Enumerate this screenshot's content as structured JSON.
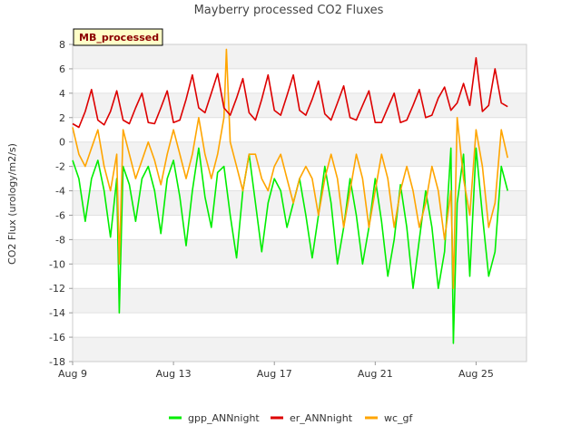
{
  "chart_data": {
    "type": "line",
    "title": "Mayberry processed CO2 Fluxes",
    "badge": "MB_processed",
    "xlabel": "",
    "ylabel": "CO2 Flux (urology/m2/s)",
    "ylim": [
      -18,
      8
    ],
    "yticks": [
      8,
      6,
      4,
      2,
      0,
      -2,
      -4,
      -6,
      -8,
      -10,
      -12,
      -14,
      -16,
      -18
    ],
    "xlim": [
      0,
      18
    ],
    "xticks": [
      {
        "value": 0,
        "label": "Aug 9"
      },
      {
        "value": 4,
        "label": "Aug 13"
      },
      {
        "value": 8,
        "label": "Aug 17"
      },
      {
        "value": 12,
        "label": "Aug 21"
      },
      {
        "value": 16,
        "label": "Aug 25"
      }
    ],
    "grid": true,
    "legend_position": "bottom",
    "series": [
      {
        "name": "gpp_ANNnight",
        "color": "#00ee00",
        "x": [
          0.0,
          0.25,
          0.5,
          0.75,
          1.0,
          1.25,
          1.5,
          1.75,
          1.85,
          2.0,
          2.25,
          2.5,
          2.75,
          3.0,
          3.25,
          3.5,
          3.75,
          4.0,
          4.25,
          4.5,
          4.75,
          5.0,
          5.25,
          5.5,
          5.75,
          6.0,
          6.25,
          6.5,
          6.75,
          7.0,
          7.25,
          7.5,
          7.75,
          8.0,
          8.25,
          8.5,
          8.75,
          9.0,
          9.25,
          9.5,
          9.75,
          10.0,
          10.25,
          10.5,
          10.75,
          11.0,
          11.25,
          11.5,
          11.75,
          12.0,
          12.25,
          12.5,
          12.75,
          13.0,
          13.25,
          13.5,
          13.75,
          14.0,
          14.25,
          14.5,
          14.75,
          15.0,
          15.1,
          15.25,
          15.5,
          15.75,
          16.0,
          16.25,
          16.5,
          16.75,
          17.0,
          17.25
        ],
        "y": [
          -1.5,
          -3,
          -6.5,
          -3,
          -1.5,
          -4,
          -7.8,
          -3,
          -14,
          -2,
          -3.5,
          -6.5,
          -3,
          -2,
          -4,
          -7.5,
          -3,
          -1.5,
          -4.5,
          -8.5,
          -4,
          -0.5,
          -4.5,
          -7,
          -2.5,
          -2,
          -6,
          -9.5,
          -4,
          -1,
          -5,
          -9,
          -5,
          -3,
          -4,
          -7,
          -5,
          -3,
          -6,
          -9.5,
          -6,
          -2,
          -5,
          -10,
          -7,
          -3,
          -6,
          -10,
          -7,
          -3,
          -6.5,
          -11,
          -8,
          -3.5,
          -7,
          -12,
          -8,
          -4,
          -7,
          -12,
          -9,
          -0.5,
          -16.5,
          -5,
          -1,
          -11,
          -0.5,
          -6,
          -11,
          -9,
          -2,
          -4
        ]
      },
      {
        "name": "er_ANNnight",
        "color": "#dd0000",
        "x": [
          0.0,
          0.25,
          0.5,
          0.75,
          1.0,
          1.25,
          1.5,
          1.75,
          2.0,
          2.25,
          2.5,
          2.75,
          3.0,
          3.25,
          3.5,
          3.75,
          4.0,
          4.25,
          4.5,
          4.75,
          5.0,
          5.25,
          5.5,
          5.75,
          6.0,
          6.25,
          6.5,
          6.75,
          7.0,
          7.25,
          7.5,
          7.75,
          8.0,
          8.25,
          8.5,
          8.75,
          9.0,
          9.25,
          9.5,
          9.75,
          10.0,
          10.25,
          10.5,
          10.75,
          11.0,
          11.25,
          11.5,
          11.75,
          12.0,
          12.25,
          12.5,
          12.75,
          13.0,
          13.25,
          13.5,
          13.75,
          14.0,
          14.25,
          14.5,
          14.75,
          15.0,
          15.25,
          15.5,
          15.75,
          16.0,
          16.25,
          16.5,
          16.75,
          17.0,
          17.25
        ],
        "y": [
          1.5,
          1.2,
          2.5,
          4.3,
          1.8,
          1.4,
          2.5,
          4.2,
          1.8,
          1.5,
          2.8,
          4.0,
          1.6,
          1.5,
          2.8,
          4.2,
          1.6,
          1.8,
          3.5,
          5.5,
          2.8,
          2.4,
          4.0,
          5.6,
          2.8,
          2.2,
          3.6,
          5.2,
          2.4,
          1.8,
          3.5,
          5.5,
          2.6,
          2.2,
          3.8,
          5.5,
          2.6,
          2.2,
          3.5,
          5.0,
          2.3,
          1.8,
          3.2,
          4.6,
          2.0,
          1.8,
          3.0,
          4.2,
          1.6,
          1.6,
          2.8,
          4.0,
          1.6,
          1.8,
          3.0,
          4.3,
          2.0,
          2.2,
          3.6,
          4.5,
          2.6,
          3.2,
          4.8,
          3.0,
          6.9,
          2.5,
          3.0,
          6.0,
          3.2,
          2.9
        ]
      },
      {
        "name": "wc_gf",
        "color": "#ffa500",
        "x": [
          0.0,
          0.25,
          0.5,
          0.75,
          1.0,
          1.25,
          1.5,
          1.75,
          1.85,
          2.0,
          2.25,
          2.5,
          2.75,
          3.0,
          3.25,
          3.5,
          3.75,
          4.0,
          4.25,
          4.5,
          4.75,
          5.0,
          5.25,
          5.5,
          5.75,
          6.0,
          6.1,
          6.25,
          6.5,
          6.75,
          7.0,
          7.25,
          7.5,
          7.75,
          8.0,
          8.25,
          8.5,
          8.75,
          9.0,
          9.25,
          9.5,
          9.75,
          10.0,
          10.25,
          10.5,
          10.75,
          11.0,
          11.25,
          11.5,
          11.75,
          12.0,
          12.25,
          12.5,
          12.75,
          13.0,
          13.25,
          13.5,
          13.75,
          14.0,
          14.25,
          14.5,
          14.75,
          15.0,
          15.1,
          15.25,
          15.5,
          15.75,
          16.0,
          16.25,
          16.5,
          16.75,
          17.0,
          17.25
        ],
        "y": [
          1.2,
          -1,
          -2,
          -0.5,
          1,
          -2,
          -4,
          -1,
          -10,
          1,
          -1,
          -3,
          -1.5,
          0,
          -1.5,
          -3.5,
          -1,
          1,
          -1,
          -3,
          -1,
          2,
          -1,
          -3,
          -1,
          2,
          7.6,
          0,
          -2,
          -4,
          -1,
          -1,
          -3,
          -4,
          -2,
          -1,
          -3,
          -5,
          -3,
          -2,
          -3,
          -6,
          -3,
          -1,
          -3,
          -7,
          -4,
          -1,
          -3,
          -7,
          -4,
          -1,
          -3,
          -7,
          -4,
          -2,
          -4,
          -7,
          -5,
          -2,
          -4,
          -8,
          -4,
          -12,
          2,
          -3,
          -6,
          1,
          -2,
          -7,
          -5,
          1,
          -1.3
        ]
      }
    ]
  }
}
